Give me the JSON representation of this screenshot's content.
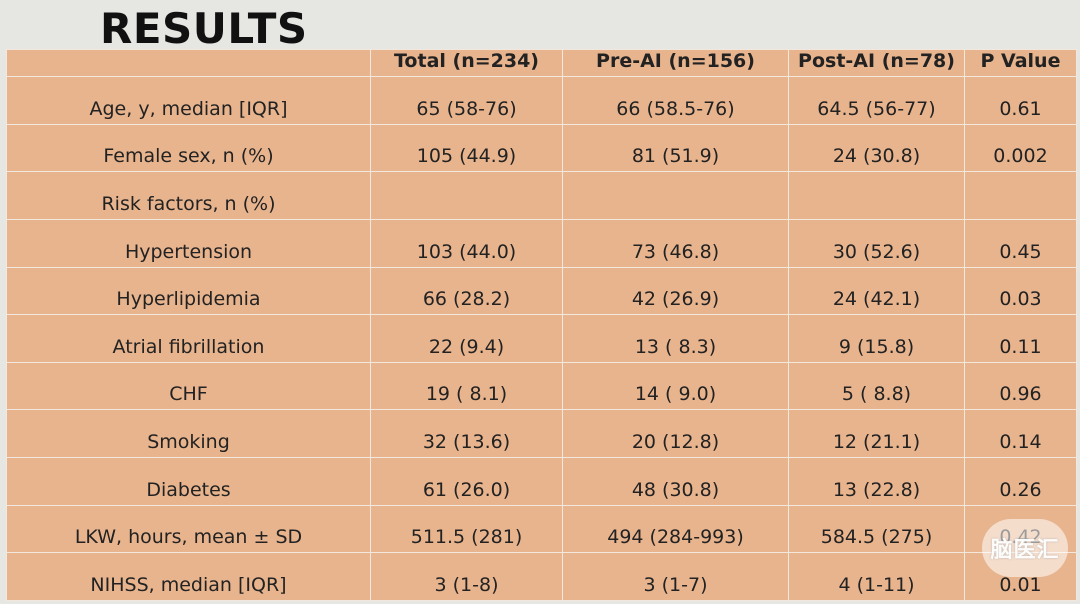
{
  "title": "RESULTS",
  "table": {
    "headers": [
      "",
      "Total (n=234)",
      "Pre-AI (n=156)",
      "Post-AI (n=78)",
      "P Value"
    ],
    "rows": [
      [
        "Age, y, median [IQR]",
        "65 (58-76)",
        "66 (58.5-76)",
        "64.5 (56-77)",
        "0.61"
      ],
      [
        "Female sex, n (%)",
        "105 (44.9)",
        "81 (51.9)",
        "24 (30.8)",
        "0.002"
      ],
      [
        "Risk factors, n (%)",
        "",
        "",
        "",
        ""
      ],
      [
        "Hypertension",
        "103 (44.0)",
        "73 (46.8)",
        "30 (52.6)",
        "0.45"
      ],
      [
        "Hyperlipidemia",
        "66 (28.2)",
        "42 (26.9)",
        "24 (42.1)",
        "0.03"
      ],
      [
        "Atrial fibrillation",
        "22 (9.4)",
        "13 ( 8.3)",
        "9 (15.8)",
        "0.11"
      ],
      [
        "CHF",
        "19 ( 8.1)",
        "14 ( 9.0)",
        "5 ( 8.8)",
        "0.96"
      ],
      [
        "Smoking",
        "32 (13.6)",
        "20 (12.8)",
        "12 (21.1)",
        "0.14"
      ],
      [
        "Diabetes",
        "61 (26.0)",
        "48 (30.8)",
        "13 (22.8)",
        "0.26"
      ],
      [
        "LKW, hours, mean ± SD",
        "511.5 (281)",
        "494 (284-993)",
        "584.5 (275)",
        "0.42"
      ],
      [
        "NIHSS, median [IQR]",
        "3 (1-8)",
        "3 (1-7)",
        "4 (1-11)",
        "0.01"
      ]
    ]
  },
  "watermark_text": "脑医汇"
}
